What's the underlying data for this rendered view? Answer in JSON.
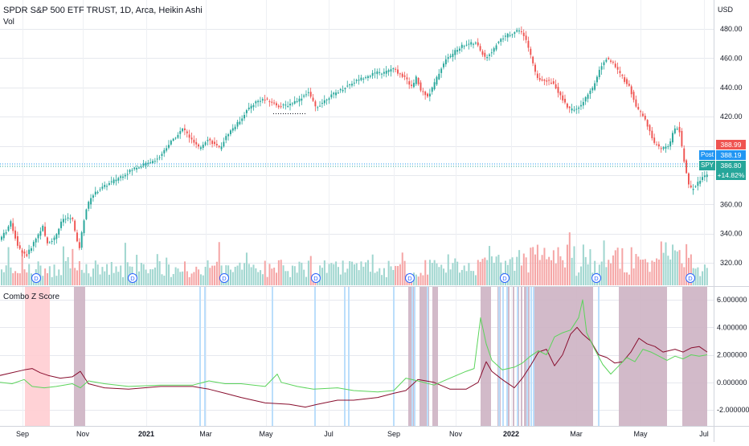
{
  "header": {
    "title": "SPDR S&P 500 ETF TRUST, 1D, Arca, Heikin Ashi",
    "vol_label": "Vol",
    "currency": "USD",
    "indicator_label": "Combo Z Score"
  },
  "price_tags": [
    {
      "label": "",
      "value": "388.99",
      "color": "#ef5350"
    },
    {
      "label": "Post",
      "value": "388.19",
      "color": "#2196f3"
    },
    {
      "label": "SPY",
      "value": "386.80",
      "color": "#26a69a"
    },
    {
      "label": "",
      "value": "+14.82%",
      "color": "#26a69a"
    }
  ],
  "dividend_marker": "D",
  "chart_data": [
    {
      "type": "candlestick",
      "title": "SPDR S&P 500 ETF TRUST, 1D, Arca, Heikin Ashi",
      "x_tick_labels": [
        "Sep",
        "Nov",
        "2021",
        "Mar",
        "May",
        "Jul",
        "Sep",
        "Nov",
        "2022",
        "Mar",
        "May",
        "Jul"
      ],
      "y_tick_labels": [
        "320.00",
        "340.00",
        "360.00",
        "380.00",
        "400.00",
        "420.00",
        "440.00",
        "460.00",
        "480.00"
      ],
      "ylim": [
        310,
        490
      ],
      "price_path": [
        [
          0,
          335
        ],
        [
          10,
          342
        ],
        [
          15,
          348
        ],
        [
          25,
          330
        ],
        [
          35,
          325
        ],
        [
          45,
          335
        ],
        [
          55,
          345
        ],
        [
          60,
          333
        ],
        [
          70,
          337
        ],
        [
          80,
          350
        ],
        [
          92,
          350
        ],
        [
          100,
          328
        ],
        [
          108,
          355
        ],
        [
          115,
          365
        ],
        [
          125,
          370
        ],
        [
          140,
          375
        ],
        [
          155,
          380
        ],
        [
          170,
          385
        ],
        [
          185,
          388
        ],
        [
          200,
          392
        ],
        [
          210,
          400
        ],
        [
          220,
          406
        ],
        [
          230,
          412
        ],
        [
          240,
          404
        ],
        [
          250,
          398
        ],
        [
          260,
          405
        ],
        [
          275,
          398
        ],
        [
          285,
          408
        ],
        [
          300,
          417
        ],
        [
          310,
          425
        ],
        [
          320,
          430
        ],
        [
          330,
          432
        ],
        [
          340,
          430
        ],
        [
          350,
          427
        ],
        [
          360,
          428
        ],
        [
          375,
          432
        ],
        [
          385,
          437
        ],
        [
          395,
          426
        ],
        [
          410,
          433
        ],
        [
          425,
          438
        ],
        [
          440,
          443
        ],
        [
          455,
          447
        ],
        [
          470,
          450
        ],
        [
          480,
          450
        ],
        [
          490,
          453
        ],
        [
          505,
          447
        ],
        [
          515,
          440
        ],
        [
          520,
          447
        ],
        [
          525,
          438
        ],
        [
          535,
          434
        ],
        [
          545,
          446
        ],
        [
          555,
          458
        ],
        [
          565,
          463
        ],
        [
          575,
          468
        ],
        [
          585,
          470
        ],
        [
          595,
          470
        ],
        [
          605,
          460
        ],
        [
          615,
          465
        ],
        [
          620,
          470
        ],
        [
          630,
          475
        ],
        [
          640,
          477
        ],
        [
          648,
          479
        ],
        [
          655,
          474
        ],
        [
          660,
          466
        ],
        [
          665,
          456
        ],
        [
          670,
          446
        ],
        [
          680,
          445
        ],
        [
          690,
          443
        ],
        [
          700,
          433
        ],
        [
          710,
          425
        ],
        [
          720,
          425
        ],
        [
          730,
          432
        ],
        [
          740,
          440
        ],
        [
          745,
          448
        ],
        [
          750,
          455
        ],
        [
          757,
          460
        ],
        [
          765,
          456
        ],
        [
          775,
          448
        ],
        [
          785,
          440
        ],
        [
          795,
          425
        ],
        [
          805,
          418
        ],
        [
          815,
          402
        ],
        [
          825,
          398
        ],
        [
          835,
          400
        ],
        [
          840,
          412
        ],
        [
          847,
          412
        ],
        [
          850,
          400
        ],
        [
          855,
          383
        ],
        [
          860,
          370
        ],
        [
          866,
          372
        ],
        [
          875,
          378
        ],
        [
          882,
          381
        ]
      ],
      "annotations": [
        {
          "type": "dotted-line",
          "from": [
            340,
            422
          ],
          "to": [
            382,
            422
          ]
        }
      ]
    },
    {
      "type": "bar",
      "title": "Vol",
      "values_description": "daily volume bars colored by candle direction"
    },
    {
      "type": "line",
      "title": "Combo Z Score",
      "y_tick_labels": [
        "6.000000",
        "4.000000",
        "2.000000",
        "0.000000",
        "-2.000000"
      ],
      "ylim": [
        -2.6,
        6.6
      ],
      "series": [
        {
          "color": "#880e2e",
          "points": [
            [
              0,
              0.5
            ],
            [
              15,
              0.7
            ],
            [
              30,
              0.9
            ],
            [
              40,
              1.0
            ],
            [
              50,
              0.7
            ],
            [
              60,
              0.5
            ],
            [
              75,
              0.3
            ],
            [
              90,
              0.4
            ],
            [
              100,
              0.8
            ],
            [
              110,
              -0.1
            ],
            [
              130,
              -0.4
            ],
            [
              160,
              -0.5
            ],
            [
              200,
              -0.3
            ],
            [
              240,
              -0.3
            ],
            [
              260,
              -0.5
            ],
            [
              280,
              -0.8
            ],
            [
              300,
              -1.1
            ],
            [
              330,
              -1.5
            ],
            [
              360,
              -1.6
            ],
            [
              380,
              -1.8
            ],
            [
              395,
              -1.6
            ],
            [
              420,
              -1.3
            ],
            [
              440,
              -1.3
            ],
            [
              470,
              -1.1
            ],
            [
              490,
              -0.8
            ],
            [
              505,
              -0.6
            ],
            [
              520,
              0.2
            ],
            [
              540,
              0.0
            ],
            [
              560,
              -0.5
            ],
            [
              580,
              -0.5
            ],
            [
              595,
              0.0
            ],
            [
              605,
              1.5
            ],
            [
              612,
              0.8
            ],
            [
              625,
              0.2
            ],
            [
              640,
              -0.4
            ],
            [
              650,
              0.3
            ],
            [
              660,
              1.2
            ],
            [
              670,
              2.2
            ],
            [
              680,
              2.4
            ],
            [
              690,
              1.2
            ],
            [
              700,
              2.0
            ],
            [
              710,
              3.5
            ],
            [
              718,
              4.0
            ],
            [
              725,
              3.5
            ],
            [
              735,
              3.0
            ],
            [
              745,
              2.0
            ],
            [
              755,
              1.8
            ],
            [
              765,
              1.4
            ],
            [
              775,
              1.5
            ],
            [
              785,
              2.2
            ],
            [
              795,
              3.2
            ],
            [
              805,
              2.8
            ],
            [
              815,
              2.6
            ],
            [
              825,
              2.2
            ],
            [
              840,
              2.4
            ],
            [
              850,
              2.2
            ],
            [
              860,
              2.5
            ],
            [
              870,
              2.6
            ],
            [
              880,
              2.2
            ]
          ]
        },
        {
          "color": "#5bd45b",
          "points": [
            [
              0,
              0.0
            ],
            [
              15,
              -0.1
            ],
            [
              30,
              0.2
            ],
            [
              40,
              -0.3
            ],
            [
              55,
              -0.4
            ],
            [
              70,
              -0.3
            ],
            [
              90,
              -0.1
            ],
            [
              100,
              -0.4
            ],
            [
              110,
              0.1
            ],
            [
              130,
              -0.1
            ],
            [
              160,
              -0.3
            ],
            [
              200,
              -0.2
            ],
            [
              240,
              -0.2
            ],
            [
              260,
              0.1
            ],
            [
              280,
              -0.1
            ],
            [
              300,
              -0.1
            ],
            [
              330,
              -0.3
            ],
            [
              345,
              0.6
            ],
            [
              350,
              0.0
            ],
            [
              370,
              -0.3
            ],
            [
              390,
              -0.5
            ],
            [
              420,
              -0.4
            ],
            [
              440,
              -0.6
            ],
            [
              470,
              -0.7
            ],
            [
              490,
              -0.6
            ],
            [
              505,
              0.3
            ],
            [
              520,
              0.1
            ],
            [
              540,
              -0.2
            ],
            [
              560,
              0.3
            ],
            [
              580,
              0.8
            ],
            [
              590,
              1.0
            ],
            [
              598,
              4.7
            ],
            [
              605,
              2.8
            ],
            [
              612,
              1.6
            ],
            [
              625,
              0.9
            ],
            [
              640,
              1.1
            ],
            [
              650,
              1.4
            ],
            [
              660,
              1.9
            ],
            [
              670,
              2.3
            ],
            [
              680,
              2.0
            ],
            [
              690,
              3.3
            ],
            [
              700,
              3.6
            ],
            [
              710,
              3.8
            ],
            [
              720,
              4.7
            ],
            [
              725,
              6.0
            ],
            [
              730,
              3.6
            ],
            [
              740,
              2.4
            ],
            [
              750,
              1.3
            ],
            [
              760,
              0.6
            ],
            [
              770,
              1.2
            ],
            [
              780,
              1.8
            ],
            [
              790,
              1.5
            ],
            [
              800,
              2.4
            ],
            [
              810,
              2.2
            ],
            [
              820,
              1.9
            ],
            [
              830,
              1.6
            ],
            [
              840,
              1.9
            ],
            [
              850,
              1.7
            ],
            [
              860,
              2.0
            ],
            [
              870,
              1.9
            ],
            [
              880,
              2.0
            ]
          ]
        }
      ],
      "shaded_regions": [
        {
          "from": 31,
          "to": 62,
          "color": "#ffcdd2"
        },
        {
          "from": 92,
          "to": 106,
          "color": "#cdb3c3"
        },
        {
          "from": 508,
          "to": 516,
          "color": "#cdb3c3"
        },
        {
          "from": 522,
          "to": 534,
          "color": "#cdb3c3"
        },
        {
          "from": 538,
          "to": 545,
          "color": "#cdb3c3"
        },
        {
          "from": 598,
          "to": 611,
          "color": "#cdb3c3"
        },
        {
          "from": 619,
          "to": 623,
          "color": "#cdb3c3"
        },
        {
          "from": 632,
          "to": 634,
          "color": "#cdb3c3"
        },
        {
          "from": 638,
          "to": 640,
          "color": "#cdb3c3"
        },
        {
          "from": 644,
          "to": 646,
          "color": "#cdb3c3"
        },
        {
          "from": 648,
          "to": 650,
          "color": "#cdb3c3"
        },
        {
          "from": 652,
          "to": 659,
          "color": "#cdb3c3"
        },
        {
          "from": 664,
          "to": 738,
          "color": "#cdb3c3"
        },
        {
          "from": 770,
          "to": 830,
          "color": "#cdb3c3"
        },
        {
          "from": 849,
          "to": 880,
          "color": "#cdb3c3"
        }
      ],
      "blue_lines": [
        248,
        254,
        338,
        391,
        428,
        433,
        489,
        512,
        515,
        531,
        620,
        625,
        630,
        643,
        655,
        660,
        663,
        744
      ]
    }
  ]
}
